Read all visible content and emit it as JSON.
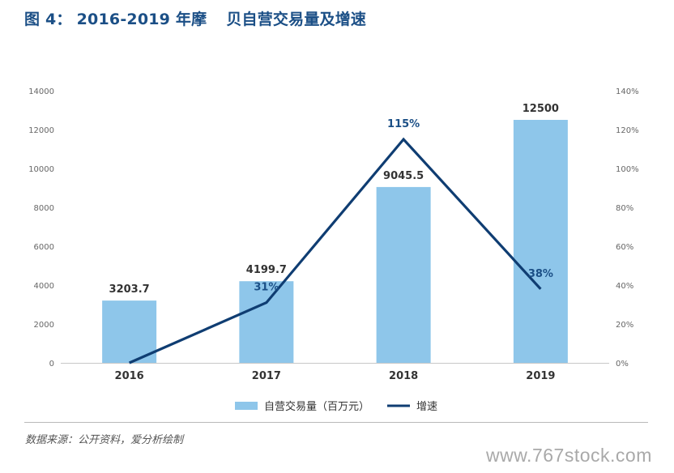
{
  "title": {
    "prefix": "图 4：",
    "years": "2016-2019 年摩",
    "rest": "贝自营交易量及增速"
  },
  "chart_data": {
    "type": "bar",
    "categories": [
      "2016",
      "2017",
      "2018",
      "2019"
    ],
    "series": [
      {
        "name": "自营交易量（百万元）",
        "type": "bar",
        "axis": "left",
        "values": [
          3203.7,
          4199.7,
          9045.5,
          12500
        ],
        "labels": [
          "3203.7",
          "4199.7",
          "9045.5",
          "12500"
        ],
        "color": "#8ec6ea"
      },
      {
        "name": "增速",
        "type": "line",
        "axis": "right",
        "values": [
          0,
          31,
          115,
          38
        ],
        "labels": [
          "",
          "31%",
          "115%",
          "38%"
        ],
        "color": "#0f3d72"
      }
    ],
    "ylim": [
      0,
      14000
    ],
    "y_ticks": [
      "0",
      "2000",
      "4000",
      "6000",
      "8000",
      "10000",
      "12000",
      "14000"
    ],
    "y2lim": [
      0,
      140
    ],
    "y2_ticks": [
      "0%",
      "20%",
      "40%",
      "60%",
      "80%",
      "100%",
      "120%",
      "140%"
    ],
    "grid": false,
    "legend_position": "bottom"
  },
  "source": "数据来源：公开资料，爱分析绘制",
  "watermark": "www.767stock.com"
}
